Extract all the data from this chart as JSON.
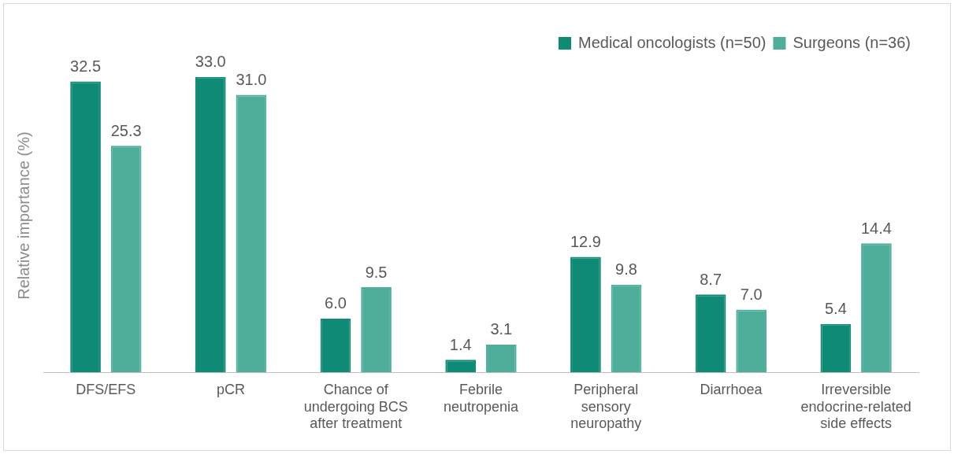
{
  "chart_data": {
    "type": "bar",
    "ylabel": "Relative importance (%)",
    "categories": [
      "DFS/EFS",
      "pCR",
      "Chance of undergoing BCS after treatment",
      "Febrile neutropenia",
      "Peripheral sensory neuropathy",
      "Diarrhoea",
      "Irreversible endocrine-related side effects"
    ],
    "series": [
      {
        "name": "Medical oncologists (n=50)",
        "color": "#0f8a74",
        "values": [
          32.5,
          33.0,
          6.0,
          1.4,
          12.9,
          8.7,
          5.4
        ],
        "value_labels": [
          "32.5",
          "33.0",
          "6.0",
          "1.4",
          "12.9",
          "8.7",
          "5.4"
        ]
      },
      {
        "name": "Surgeons (n=36)",
        "color": "#4fae9a",
        "values": [
          25.3,
          31.0,
          9.5,
          3.1,
          9.8,
          7.0,
          14.4
        ],
        "value_labels": [
          "25.3",
          "31.0",
          "9.5",
          "3.1",
          "9.8",
          "7.0",
          "14.4"
        ]
      }
    ],
    "data_labels": true,
    "tick_labels": "x",
    "grid": false,
    "legend": "top right"
  }
}
